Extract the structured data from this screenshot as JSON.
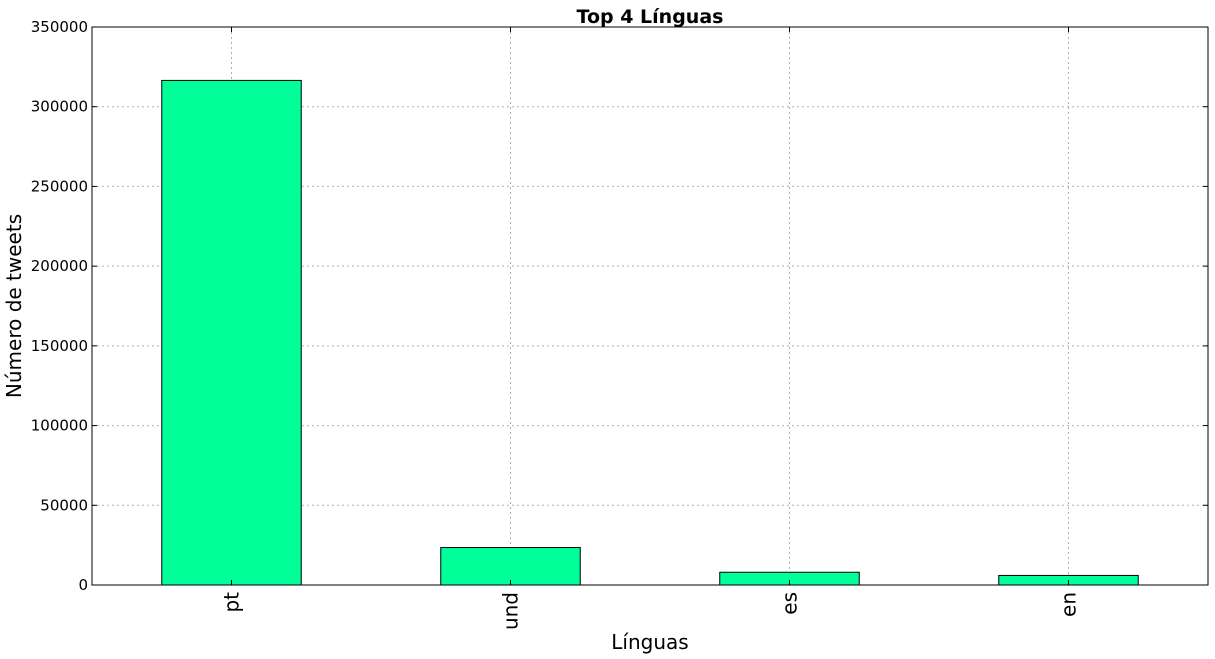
{
  "chart_data": {
    "type": "bar",
    "title": "Top 4 Línguas",
    "xlabel": "Línguas",
    "ylabel": "Número de tweets",
    "categories": [
      "pt",
      "und",
      "es",
      "en"
    ],
    "values": [
      316500,
      23500,
      8000,
      6000
    ],
    "ylim": [
      0,
      350000
    ],
    "yticks": [
      "0",
      "50000",
      "100000",
      "150000",
      "200000",
      "250000",
      "300000",
      "350000"
    ],
    "grid": true,
    "bar_color": "#00ff99"
  }
}
